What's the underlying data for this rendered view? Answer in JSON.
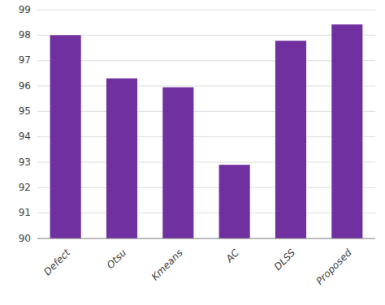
{
  "chart_data": {
    "type": "bar",
    "categories": [
      "Defect",
      "Otsu",
      "Kmeans",
      "AC",
      "DLSS",
      "Proposed"
    ],
    "values": [
      98.0,
      96.3,
      95.95,
      92.9,
      97.78,
      98.42
    ],
    "color": "#7030A0",
    "ylim": [
      90,
      99
    ],
    "yticks": [
      90,
      91,
      92,
      93,
      94,
      95,
      96,
      97,
      98,
      99
    ],
    "grid": true
  }
}
